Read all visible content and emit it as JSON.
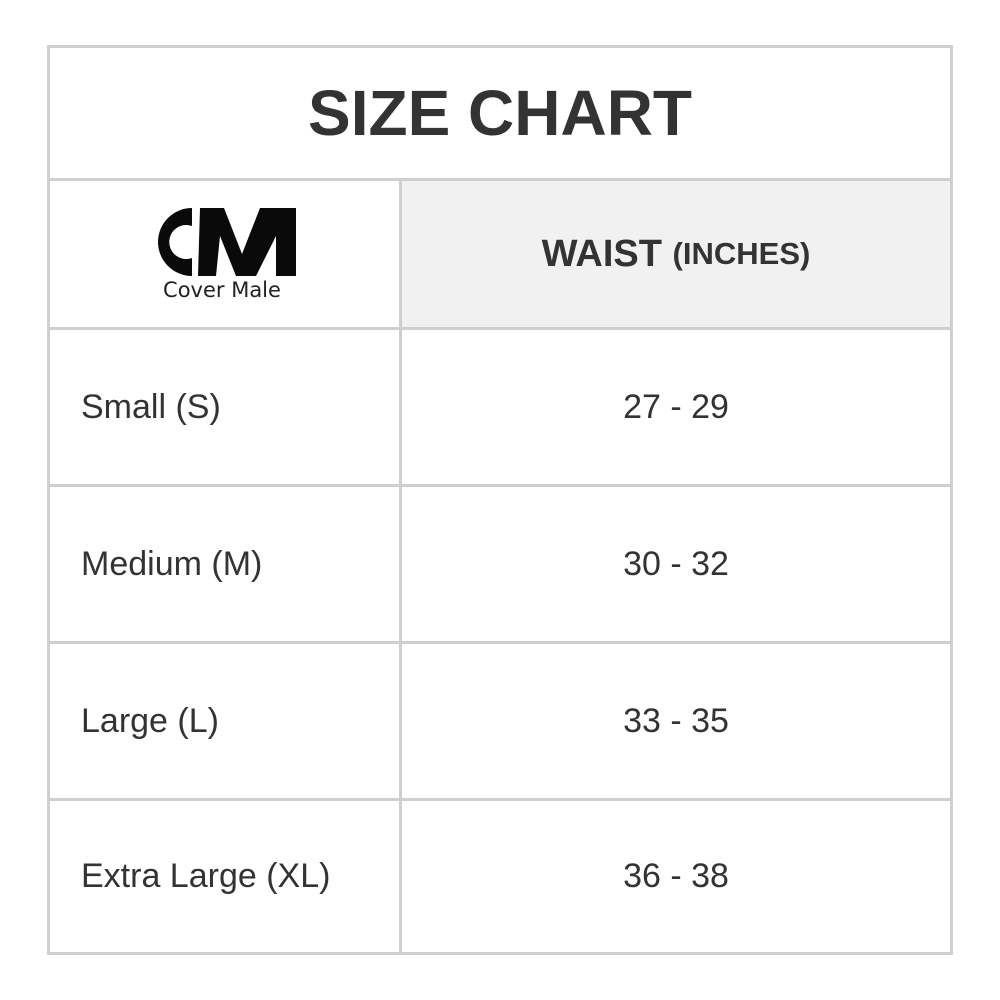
{
  "title": "SIZE CHART",
  "logo": {
    "text": "CM",
    "brand_name": "Cover Male"
  },
  "header": {
    "measure": "WAIST",
    "unit": "(INCHES)"
  },
  "rows": [
    {
      "size": "Small (S)",
      "waist": "27 - 29"
    },
    {
      "size": "Medium (M)",
      "waist": "30 - 32"
    },
    {
      "size": "Large (L)",
      "waist": "33 - 35"
    },
    {
      "size": "Extra Large (XL)",
      "waist": "36 - 38"
    }
  ],
  "colors": {
    "border": "#cfcfcf",
    "header_bg": "#f1f1f1",
    "text": "#333333"
  }
}
